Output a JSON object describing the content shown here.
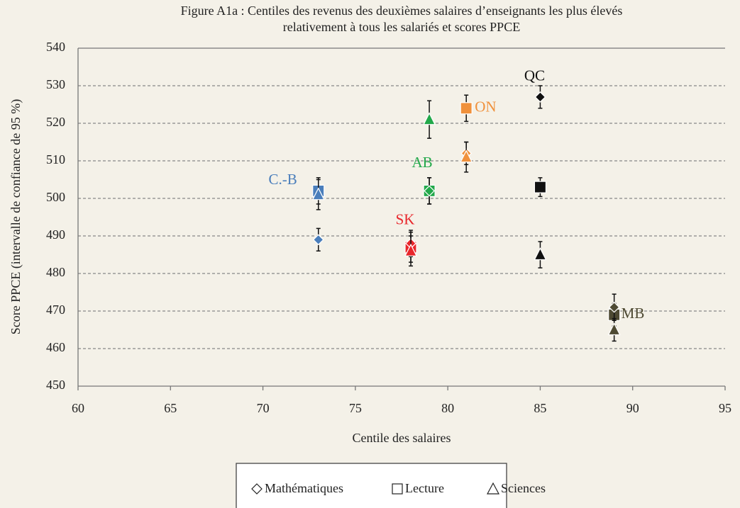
{
  "chart_data": {
    "type": "scatter",
    "title": [
      "Figure A1a : Centiles des revenus des deuxièmes salaires d’enseignants les plus élevés",
      "relativement à  tous les salariés et scores PPCE"
    ],
    "xlabel": "Centile des salaires",
    "ylabel": "Score PPCE (intervalle de confiance de 95 %)",
    "xlim": [
      60,
      95
    ],
    "xticks": [
      60,
      65,
      70,
      75,
      80,
      85,
      90,
      95
    ],
    "ylim": [
      450,
      540
    ],
    "yticks": [
      450,
      460,
      470,
      480,
      490,
      500,
      510,
      520,
      530,
      540
    ],
    "grid": true,
    "x": [
      73,
      78,
      79,
      81,
      85,
      89
    ],
    "point_labels": [
      "C.-B",
      "SK",
      "AB",
      "ON",
      "QC",
      "MB"
    ],
    "colors": [
      "#4a7ebb",
      "#e8262b",
      "#22a84a",
      "#f0913c",
      "#111111",
      "#4e4a33"
    ],
    "series": [
      {
        "name": "Mathématiques",
        "marker": "diamond",
        "values": [
          489,
          488,
          502,
          512,
          527,
          471
        ],
        "errors": [
          3,
          3.5,
          3.5,
          3,
          3,
          3.5
        ]
      },
      {
        "name": "Lecture",
        "marker": "square",
        "values": [
          502,
          487,
          502,
          524,
          503,
          469
        ],
        "errors": [
          3.5,
          4,
          3.5,
          3.5,
          2.5,
          3
        ]
      },
      {
        "name": "Sciences",
        "marker": "triangle",
        "values": [
          501,
          486,
          521,
          511,
          485,
          465
        ],
        "errors": [
          4,
          4,
          5,
          4,
          3.5,
          3
        ]
      }
    ],
    "legend": "bottom"
  }
}
